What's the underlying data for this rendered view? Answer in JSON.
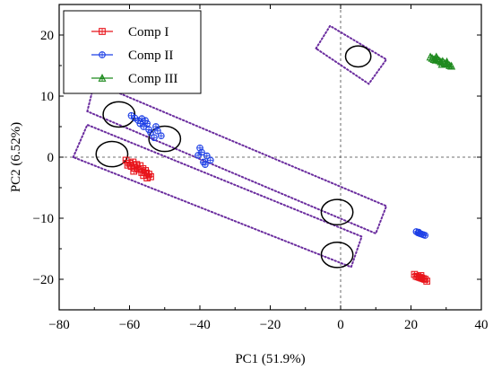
{
  "chart_data": {
    "type": "scatter",
    "title": "",
    "xlabel": "PC1 (51.9%)",
    "ylabel": "PC2 (6.52%)",
    "xlim": [
      -80,
      40
    ],
    "ylim": [
      -25,
      25
    ],
    "x_ticks": [
      -80,
      -60,
      -40,
      -20,
      0,
      20,
      40
    ],
    "x_tick_labels": [
      "−80",
      "−60",
      "−40",
      "−20",
      "0",
      "20",
      "40"
    ],
    "y_ticks": [
      -20,
      -10,
      0,
      10,
      20
    ],
    "y_tick_labels": [
      "−20",
      "−10",
      "0",
      "10",
      "20"
    ],
    "reference_lines": {
      "x": 0,
      "y": 0,
      "style": "dashed"
    },
    "legend": {
      "position": "top-left",
      "entries": [
        "Comp I",
        "Comp II",
        "Comp III"
      ]
    },
    "series": [
      {
        "name": "Comp I",
        "color": "#e8141b",
        "marker": "square-cross",
        "points": [
          [
            -61,
            -0.5
          ],
          [
            -60,
            -1.0
          ],
          [
            -59.5,
            -1.5
          ],
          [
            -59,
            -0.8
          ],
          [
            -58.5,
            -1.8
          ],
          [
            -58,
            -1.2
          ],
          [
            -57.5,
            -2.0
          ],
          [
            -57,
            -1.4
          ],
          [
            -56.5,
            -2.5
          ],
          [
            -56,
            -3.0
          ],
          [
            -55.5,
            -2.2
          ],
          [
            -55,
            -3.4
          ],
          [
            -54.5,
            -2.8
          ],
          [
            -54,
            -3.2
          ],
          [
            -60.5,
            -1.3
          ],
          [
            -58.8,
            -2.3
          ],
          [
            -56.2,
            -1.9
          ],
          [
            -55.2,
            -2.6
          ],
          [
            21,
            -19.2
          ],
          [
            21.5,
            -19.5
          ],
          [
            22,
            -19.6
          ],
          [
            22.5,
            -19.7
          ],
          [
            23,
            -19.8
          ],
          [
            23.5,
            -19.9
          ],
          [
            24,
            -20.0
          ],
          [
            24.5,
            -20.3
          ],
          [
            22.8,
            -19.4
          ]
        ]
      },
      {
        "name": "Comp II",
        "color": "#1e40e6",
        "marker": "circle-plus",
        "points": [
          [
            -59.5,
            6.8
          ],
          [
            -58.5,
            6.4
          ],
          [
            -57.5,
            6.0
          ],
          [
            -57,
            5.5
          ],
          [
            -56.5,
            6.3
          ],
          [
            -56,
            5.0
          ],
          [
            -55.5,
            6.0
          ],
          [
            -55,
            5.5
          ],
          [
            -54.5,
            4.5
          ],
          [
            -54,
            4.0
          ],
          [
            -53,
            3.2
          ],
          [
            -52.5,
            5.0
          ],
          [
            -52,
            4.3
          ],
          [
            -51,
            3.5
          ],
          [
            -40,
            1.5
          ],
          [
            -39.5,
            0.8
          ],
          [
            -40.5,
            0.3
          ],
          [
            -39,
            -0.8
          ],
          [
            -38.5,
            -1.2
          ],
          [
            -38,
            0.2
          ],
          [
            -37,
            -0.5
          ],
          [
            21.5,
            -12.2
          ],
          [
            22,
            -12.4
          ],
          [
            22.5,
            -12.5
          ],
          [
            23,
            -12.6
          ],
          [
            23.5,
            -12.7
          ],
          [
            24,
            -12.8
          ],
          [
            22.2,
            -12.3
          ]
        ]
      },
      {
        "name": "Comp III",
        "color": "#1e8a1e",
        "marker": "triangle-plus",
        "points": [
          [
            25.5,
            16.4
          ],
          [
            26,
            16.2
          ],
          [
            26.5,
            16.0
          ],
          [
            27,
            15.9
          ],
          [
            27.5,
            16.1
          ],
          [
            28,
            15.8
          ],
          [
            28.5,
            15.6
          ],
          [
            29,
            15.7
          ],
          [
            29.5,
            15.4
          ],
          [
            30,
            15.3
          ],
          [
            30.5,
            15.2
          ],
          [
            31,
            15.0
          ],
          [
            31.5,
            14.9
          ],
          [
            27.2,
            16.4
          ],
          [
            28.8,
            15.2
          ],
          [
            30.2,
            15.6
          ]
        ]
      }
    ],
    "annotations": {
      "ellipses": [
        {
          "cx": -63,
          "cy": 7,
          "rx": 5,
          "ry": 1.8
        },
        {
          "cx": -50,
          "cy": 3,
          "rx": 5,
          "ry": 1.8
        },
        {
          "cx": -65,
          "cy": 0.5,
          "rx": 5,
          "ry": 1.8
        },
        {
          "cx": 5,
          "cy": 16.5,
          "rx": 4,
          "ry": 1.5
        },
        {
          "cx": -1,
          "cy": -9,
          "rx": 5,
          "ry": 1.8
        },
        {
          "cx": -1,
          "cy": -16,
          "rx": 5,
          "ry": 1.8
        }
      ],
      "dotted_boxes": {
        "color": "#6a2c9e",
        "polygons": [
          [
            [
              -72,
              7.5
            ],
            [
              -70,
              12.2
            ],
            [
              13,
              -8.0
            ],
            [
              10,
              -12.5
            ]
          ],
          [
            [
              -76,
              0.0
            ],
            [
              -72,
              5.3
            ],
            [
              6,
              -13.0
            ],
            [
              3,
              -18.0
            ]
          ],
          [
            [
              -7,
              17.8
            ],
            [
              -3,
              21.5
            ],
            [
              13,
              16.0
            ],
            [
              8,
              12.0
            ]
          ]
        ]
      }
    }
  }
}
